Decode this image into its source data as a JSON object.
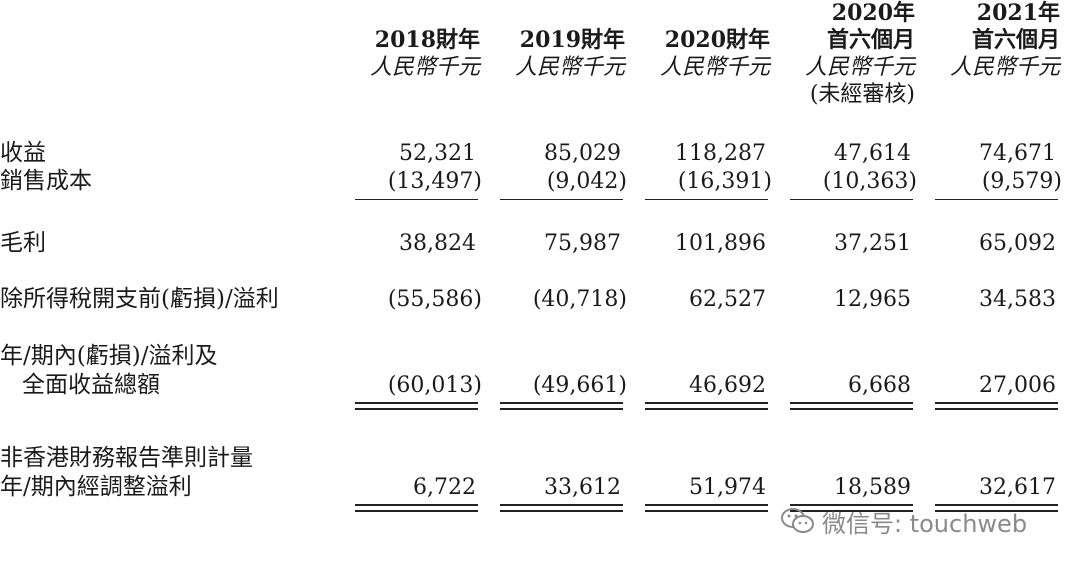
{
  "columns": [
    {
      "line1": "",
      "line2": "2018財年",
      "unit": "人民幣千元",
      "note": ""
    },
    {
      "line1": "",
      "line2": "2019財年",
      "unit": "人民幣千元",
      "note": ""
    },
    {
      "line1": "",
      "line2": "2020財年",
      "unit": "人民幣千元",
      "note": ""
    },
    {
      "line1": "2020年",
      "line2": "首六個月",
      "unit": "人民幣千元",
      "note": "(未經審核)"
    },
    {
      "line1": "2021年",
      "line2": "首六個月",
      "unit": "人民幣千元",
      "note": ""
    }
  ],
  "rows": [
    {
      "label": "收益",
      "values": [
        "52,321",
        "85,029",
        "118,287",
        "47,614",
        "74,671"
      ]
    },
    {
      "label": "銷售成本",
      "values": [
        "(13,497)",
        "(9,042)",
        "(16,391)",
        "(10,363)",
        "(9,579)"
      ]
    },
    {
      "label": "毛利",
      "values": [
        "38,824",
        "75,987",
        "101,896",
        "37,251",
        "65,092"
      ]
    },
    {
      "label": "除所得稅開支前(虧損)/溢利",
      "values": [
        "(55,586)",
        "(40,718)",
        "62,527",
        "12,965",
        "34,583"
      ]
    },
    {
      "label": "年/期內(虧損)/溢利及",
      "label2": "全面收益總額",
      "values": [
        "(60,013)",
        "(49,661)",
        "46,692",
        "6,668",
        "27,006"
      ]
    },
    {
      "label": "非香港財務報告準則計量",
      "label2": "年/期內經調整溢利",
      "values": [
        "6,722",
        "33,612",
        "51,974",
        "18,589",
        "32,617"
      ]
    }
  ],
  "watermark": {
    "text": "微信号: touchweb",
    "icon": "wechat-icon"
  }
}
